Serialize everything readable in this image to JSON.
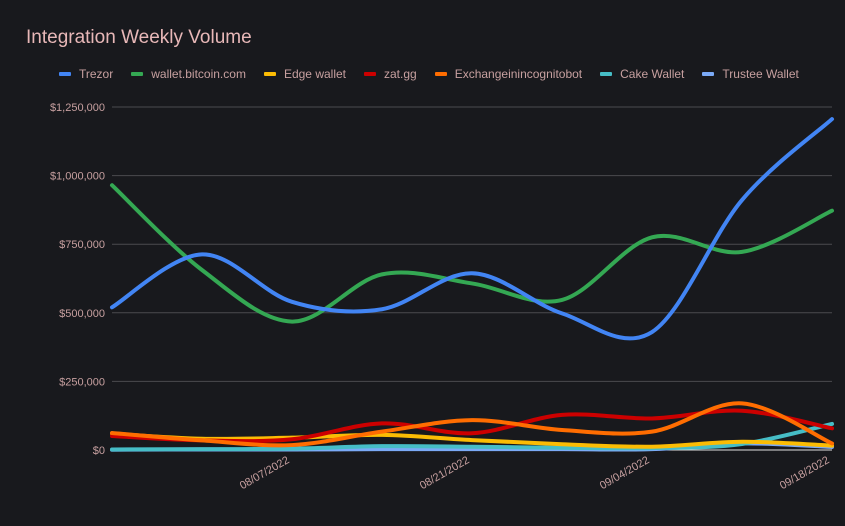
{
  "chart_data": {
    "type": "line",
    "title": "Integration Weekly Volume",
    "xlabel": "",
    "ylabel": "",
    "x": [
      "07/24/2022",
      "07/31/2022",
      "08/07/2022",
      "08/14/2022",
      "08/21/2022",
      "08/28/2022",
      "09/04/2022",
      "09/11/2022",
      "09/18/2022"
    ],
    "x_tick_labels": [
      "08/07/2022",
      "08/21/2022",
      "09/04/2022",
      "09/18/2022"
    ],
    "ylim": [
      0,
      1250000
    ],
    "y_ticks": [
      0,
      250000,
      500000,
      750000,
      1000000,
      1250000
    ],
    "y_tick_labels": [
      "$0",
      "$250,000",
      "$500,000",
      "$750,000",
      "$1,000,000",
      "$1,250,000"
    ],
    "grid": true,
    "smooth": true,
    "legend_position": "top",
    "series": [
      {
        "name": "Trezor",
        "color": "#4285f4",
        "values": [
          520000,
          713000,
          540000,
          513000,
          644000,
          498000,
          430000,
          911000,
          1206000
        ]
      },
      {
        "name": "wallet.bitcoin.com",
        "color": "#34a853",
        "values": [
          965000,
          656000,
          468000,
          640000,
          607000,
          547000,
          775000,
          722000,
          872000
        ]
      },
      {
        "name": "Edge wallet",
        "color": "#fbbc04",
        "values": [
          60000,
          41000,
          45000,
          55000,
          36000,
          21000,
          12000,
          30000,
          16000
        ]
      },
      {
        "name": "zat.gg",
        "color": "#cc0000",
        "values": [
          51000,
          35000,
          39000,
          97000,
          61000,
          128000,
          115000,
          143000,
          79000
        ]
      },
      {
        "name": "Exchangeinincognitobot",
        "color": "#ff6d01",
        "values": [
          62000,
          35000,
          18000,
          67000,
          109000,
          73000,
          67000,
          170000,
          24000
        ]
      },
      {
        "name": "Cake Wallet",
        "color": "#46bdc6",
        "values": [
          2000,
          3000,
          5000,
          14000,
          12000,
          8000,
          7000,
          22000,
          95000
        ]
      },
      {
        "name": "Trustee Wallet",
        "color": "#7baaf7",
        "values": [
          1000,
          2000,
          2000,
          3000,
          3000,
          3000,
          3000,
          24000,
          11000
        ]
      }
    ]
  }
}
